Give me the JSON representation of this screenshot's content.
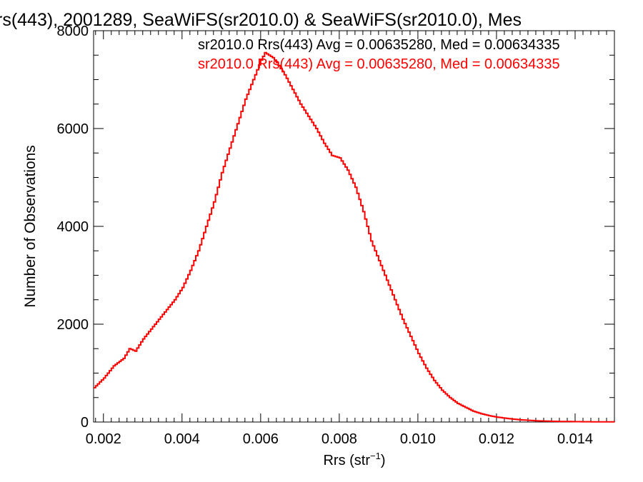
{
  "chart_data": {
    "type": "line",
    "title": "rs(443), 2001289, SeaWiFS(sr2010.0) & SeaWiFS(sr2010.0), Mes",
    "xlabel": "Rrs (str",
    "xlabel_sup": "−1",
    "xlabel_end": ")",
    "ylabel": "Number of Observations",
    "xlim": [
      0.00175,
      0.015
    ],
    "ylim": [
      0,
      8000
    ],
    "x_ticks": [
      0.002,
      0.004,
      0.006,
      0.008,
      0.01,
      0.012,
      0.014
    ],
    "x_tick_labels": [
      "0.002",
      "0.004",
      "0.006",
      "0.008",
      "0.010",
      "0.012",
      "0.014"
    ],
    "y_ticks": [
      0,
      2000,
      4000,
      6000,
      8000
    ],
    "y_tick_labels": [
      "0",
      "2000",
      "4000",
      "6000",
      "8000"
    ],
    "grid": false,
    "annotations": [
      {
        "text": "sr2010.0 Rrs(443) Avg = 0.00635280, Med = 0.00634335",
        "color": "#000000"
      },
      {
        "text": "sr2010.0 Rrs(443) Avg = 0.00635280, Med = 0.00634335",
        "color": "#ff0000"
      }
    ],
    "series": [
      {
        "color": "#ff0000",
        "step": true,
        "x": [
          0.00175,
          0.002,
          0.00225,
          0.0025,
          0.00265,
          0.0028,
          0.003,
          0.0032,
          0.0035,
          0.0038,
          0.004,
          0.0042,
          0.0044,
          0.0046,
          0.0048,
          0.005,
          0.0052,
          0.0054,
          0.0056,
          0.0058,
          0.006,
          0.0061,
          0.0062,
          0.0063,
          0.0064,
          0.0066,
          0.0068,
          0.007,
          0.0072,
          0.0074,
          0.0076,
          0.0078,
          0.008,
          0.0082,
          0.0084,
          0.0086,
          0.0088,
          0.009,
          0.0092,
          0.0094,
          0.0096,
          0.0098,
          0.01,
          0.0102,
          0.0104,
          0.0106,
          0.0108,
          0.011,
          0.0112,
          0.0114,
          0.0116,
          0.0118,
          0.012,
          0.0122,
          0.0124,
          0.0126,
          0.0128,
          0.013,
          0.0132,
          0.0134,
          0.0136,
          0.0138,
          0.014,
          0.0142,
          0.0144,
          0.0146,
          0.0148,
          0.015
        ],
        "y": [
          700,
          900,
          1150,
          1300,
          1500,
          1450,
          1700,
          1900,
          2200,
          2500,
          2750,
          3100,
          3500,
          4000,
          4500,
          5100,
          5600,
          6100,
          6600,
          7000,
          7400,
          7550,
          7500,
          7450,
          7350,
          7100,
          6800,
          6500,
          6250,
          6000,
          5700,
          5450,
          5400,
          5150,
          4800,
          4300,
          3700,
          3300,
          2900,
          2500,
          2100,
          1750,
          1400,
          1100,
          850,
          650,
          500,
          380,
          300,
          220,
          170,
          130,
          100,
          80,
          60,
          45,
          35,
          25,
          20,
          15,
          12,
          10,
          8,
          6,
          5,
          4,
          3,
          2
        ]
      }
    ]
  }
}
